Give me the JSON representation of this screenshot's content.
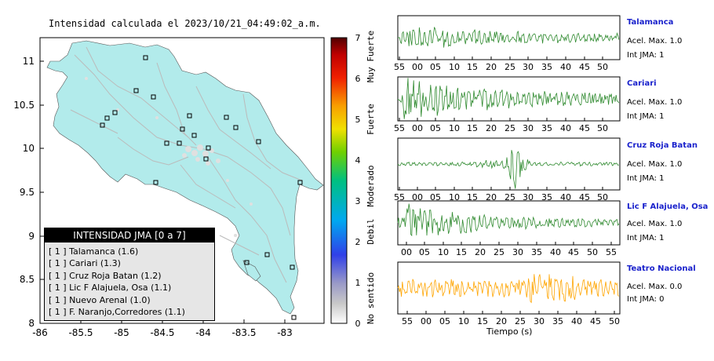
{
  "map": {
    "title": "Intensidad calculada el 2023/10/21_04:49:02_a.m.",
    "x_ticks": [
      "-86",
      "-85.5",
      "-85",
      "-84.5",
      "-84",
      "-83.5",
      "-83"
    ],
    "y_ticks": [
      "11",
      "10.5",
      "10",
      "9.5",
      "9",
      "8.5",
      "8"
    ],
    "land_color": "#b2ebeb"
  },
  "colorbar": {
    "ticks": [
      "0",
      "1",
      "2",
      "3",
      "4",
      "5",
      "6",
      "7"
    ],
    "labels": [
      "No sentido",
      "Debil",
      "Moderado",
      "Fuerte",
      "Muy Fuerte"
    ]
  },
  "legend": {
    "title": "INTENSIDAD JMA [0 a 7]",
    "items": [
      "[ 1 ]  Talamanca (1.6)",
      "[ 1 ]  Cariari (1.3)",
      "[ 1 ]  Cruz Roja Batan (1.2)",
      "[ 1 ]  Lic F Alajuela, Osa (1.1)",
      "[ 1 ]  Nuevo Arenal (1.0)",
      "[ 1 ]  F. Naranjo,Corredores (1.1)"
    ]
  },
  "stations": [
    {
      "name": "Talamanca",
      "acel": "Acel. Max. 1.0",
      "int": "Int JMA: 1",
      "color": "#2f8a2f",
      "ticks": [
        "55",
        "00",
        "05",
        "10",
        "15",
        "20",
        "25",
        "30",
        "35",
        "40",
        "45",
        "50"
      ]
    },
    {
      "name": "Cariari",
      "acel": "Acel. Max. 1.0",
      "int": "Int JMA: 1",
      "color": "#2f8a2f",
      "ticks": [
        "55",
        "00",
        "05",
        "10",
        "15",
        "20",
        "25",
        "30",
        "35",
        "40",
        "45",
        "50"
      ]
    },
    {
      "name": "Cruz Roja Batan",
      "acel": "Acel. Max. 1.0",
      "int": "Int JMA: 1",
      "color": "#2f8a2f",
      "ticks": [
        "55",
        "00",
        "05",
        "10",
        "15",
        "20",
        "25",
        "30",
        "35",
        "40",
        "45",
        "50"
      ]
    },
    {
      "name": "Lic F Alajuela, Osa",
      "acel": "Acel. Max. 1.0",
      "int": "Int JMA: 1",
      "color": "#2f8a2f",
      "ticks": [
        "00",
        "05",
        "10",
        "15",
        "20",
        "25",
        "30",
        "35",
        "40",
        "45",
        "50",
        "55"
      ]
    },
    {
      "name": "Teatro Nacional",
      "acel": "Acel. Max. 0.0",
      "int": "Int JMA: 0",
      "color": "#ffa500",
      "ticks": [
        "55",
        "00",
        "05",
        "10",
        "15",
        "20",
        "25",
        "30",
        "35",
        "40",
        "45",
        "50"
      ]
    }
  ],
  "xlabel": "Tiempo (s)"
}
